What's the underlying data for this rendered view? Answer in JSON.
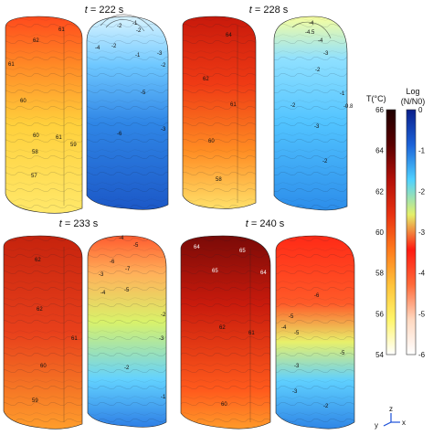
{
  "panels": [
    {
      "title_t": "t",
      "title_rest": " = 222 s",
      "temp_labels": [
        "62",
        "61",
        "61",
        "60",
        "61",
        "60",
        "59",
        "58",
        "57"
      ],
      "log_labels": [
        "-2",
        "-1",
        "-2",
        "-2",
        "-3",
        "-4",
        "-1",
        "-2",
        "-5",
        "-6",
        "-3"
      ]
    },
    {
      "title_t": "t",
      "title_rest": " = 228 s",
      "temp_labels": [
        "64",
        "62",
        "61",
        "60",
        "58"
      ],
      "log_labels": [
        "-4",
        "-4.5",
        "-4",
        "-3",
        "-2",
        "-2",
        "-3",
        "-1",
        "-0.8",
        "-2"
      ]
    },
    {
      "title_t": "t",
      "title_rest": " = 233 s",
      "temp_labels": [
        "62",
        "62",
        "61",
        "60",
        "59"
      ],
      "log_labels": [
        "-4",
        "-5",
        "-6",
        "-7",
        "-3",
        "-4",
        "-5",
        "-2",
        "-3",
        "-2",
        "-1"
      ]
    },
    {
      "title_t": "t",
      "title_rest": " = 240 s",
      "temp_labels": [
        "64",
        "65",
        "65",
        "64",
        "62",
        "61",
        "60"
      ],
      "log_labels": [
        "-6",
        "-5",
        "-4",
        "-5",
        "-3",
        "-5",
        "-2",
        "-3"
      ]
    }
  ],
  "colorbar_temp": {
    "label": "T(°C)",
    "ticks": [
      "66",
      "64",
      "62",
      "60",
      "58",
      "56",
      "54"
    ],
    "colors": [
      "#ffffff",
      "#fff56a",
      "#ffc23a",
      "#ff7a1c",
      "#e83111",
      "#b31009",
      "#5a0000",
      "#1e0000"
    ]
  },
  "colorbar_log": {
    "label_line1": "Log",
    "label_line2": "(N/N0)",
    "ticks": [
      "0",
      "-1",
      "-2",
      "-3",
      "-4",
      "-5",
      "-6"
    ],
    "colors": [
      "#ffffff",
      "#ffd8c0",
      "#ff6a3a",
      "#ff1a10",
      "#e4f06a",
      "#4fd1ff",
      "#1b62d8",
      "#0a1e8a"
    ]
  },
  "axes": {
    "y": "y",
    "z": "z",
    "x": "x"
  }
}
